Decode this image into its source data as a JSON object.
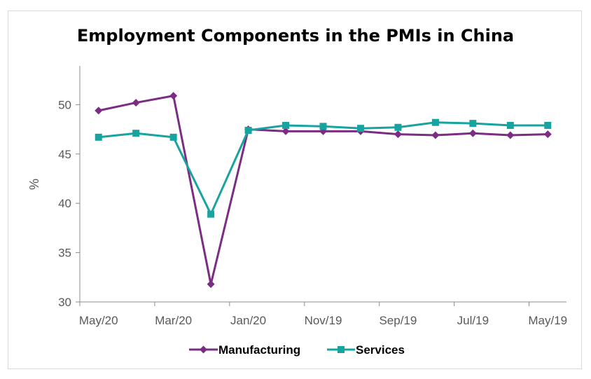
{
  "chart_data": {
    "type": "line",
    "title": "Employment Components in the PMIs in China",
    "xlabel": "",
    "ylabel": "%",
    "ylim": [
      30,
      55
    ],
    "yticks": [
      30,
      35,
      40,
      45,
      50
    ],
    "categories": [
      "May/20",
      "Apr/20",
      "Mar/20",
      "Feb/20",
      "Jan/20",
      "Dec/19",
      "Nov/19",
      "Oct/19",
      "Sep/19",
      "Aug/19",
      "Jul/19",
      "Jun/19",
      "May/19"
    ],
    "xtick_labels": [
      "May/20",
      "Mar/20",
      "Jan/20",
      "Nov/19",
      "Sep/19",
      "Jul/19",
      "May/19"
    ],
    "series": [
      {
        "name": "Manufacturing",
        "color": "#7B2C83",
        "marker": "diamond",
        "values": [
          49.4,
          50.2,
          50.9,
          31.8,
          47.5,
          47.3,
          47.3,
          47.3,
          47.0,
          46.9,
          47.1,
          46.9,
          47.0
        ]
      },
      {
        "name": "Services",
        "color": "#17A3A0",
        "marker": "square",
        "values": [
          46.7,
          47.1,
          46.7,
          38.9,
          47.4,
          47.9,
          47.8,
          47.6,
          47.7,
          48.2,
          48.1,
          47.9,
          47.9
        ]
      }
    ],
    "grid": false,
    "legend": "bottom"
  }
}
